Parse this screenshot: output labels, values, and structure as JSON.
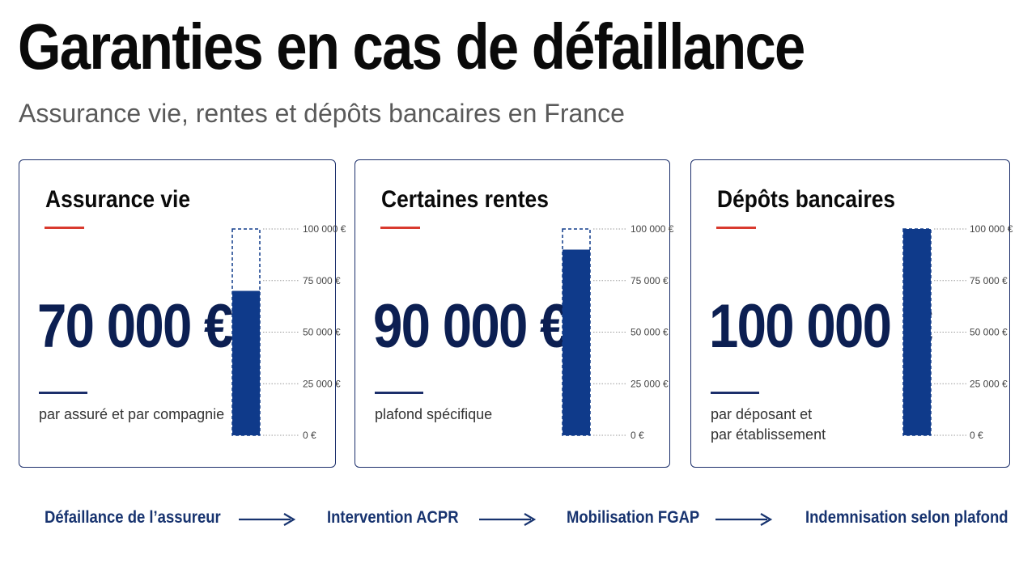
{
  "header": {
    "title": "Garanties en cas de défaillance",
    "subtitle": "Assurance vie, rentes et dépôts bancaires en France"
  },
  "colors": {
    "bar_fill": "#0f3a8a",
    "accent_red": "#d93a2e",
    "frame": "#1c2f6b",
    "value_text": "#0c1f52"
  },
  "chart_data": [
    {
      "type": "bar",
      "title": "Assurance vie",
      "value_label": "70 000 €",
      "description": [
        "par assuré et par compagnie"
      ],
      "values": [
        70000
      ],
      "ylim": [
        0,
        100000
      ],
      "y_ticks": [
        0,
        25000,
        50000,
        75000,
        100000
      ],
      "y_tick_labels": [
        "0 €",
        "25 000 €",
        "50 000 €",
        "75 000 €",
        "100 000 €"
      ],
      "grid": true
    },
    {
      "type": "bar",
      "title": "Certaines rentes",
      "value_label": "90 000 €",
      "description": [
        "plafond spécifique"
      ],
      "values": [
        90000
      ],
      "ylim": [
        0,
        100000
      ],
      "y_ticks": [
        0,
        25000,
        50000,
        75000,
        100000
      ],
      "y_tick_labels": [
        "0 €",
        "25 000 €",
        "50 000 €",
        "75 000 €",
        "100 000 €"
      ],
      "grid": true
    },
    {
      "type": "bar",
      "title": "Dépôts bancaires",
      "value_label": "100 000 €",
      "description": [
        "par déposant et",
        "par établissement"
      ],
      "values": [
        100000
      ],
      "ylim": [
        0,
        100000
      ],
      "y_ticks": [
        0,
        25000,
        50000,
        75000,
        100000
      ],
      "y_tick_labels": [
        "0 €",
        "25 000 €",
        "50 000 €",
        "75 000 €",
        "100 000 €"
      ],
      "grid": true
    }
  ],
  "flow": {
    "steps": [
      "Défaillance de l’assureur",
      "Intervention ACPR",
      "Mobilisation FGAP",
      "Indemnisation selon plafond"
    ],
    "arrow_icon": "arrow-right-icon"
  }
}
